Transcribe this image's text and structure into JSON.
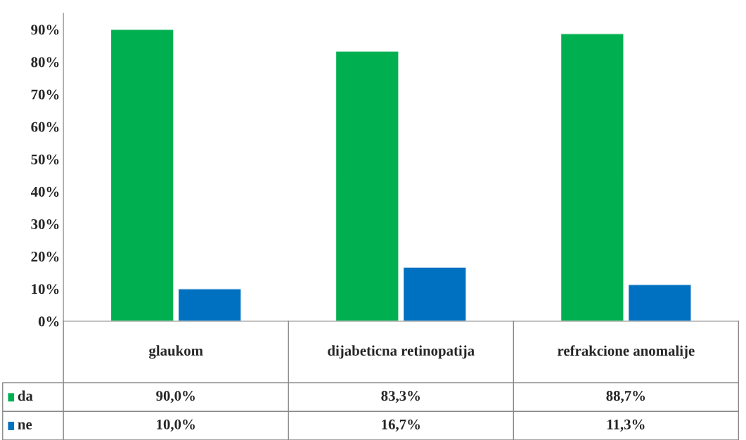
{
  "chart_data": {
    "type": "bar",
    "categories": [
      "glaukom",
      "dijabeticna retinopatija",
      "refrakcione anomalije"
    ],
    "series": [
      {
        "name": "da",
        "color": "#00b050",
        "values": [
          90.0,
          83.3,
          88.7
        ],
        "value_labels": [
          "90,0%",
          "83,3%",
          "88,7%"
        ]
      },
      {
        "name": "ne",
        "color": "#0070c0",
        "values": [
          10.0,
          16.7,
          11.3
        ],
        "value_labels": [
          "10,0%",
          "16,7%",
          "11,3%"
        ]
      }
    ],
    "ylim": [
      0,
      95
    ],
    "yticks": [
      {
        "value": 0,
        "label": "0%"
      },
      {
        "value": 10,
        "label": "10%"
      },
      {
        "value": 20,
        "label": "20%"
      },
      {
        "value": 30,
        "label": "30%"
      },
      {
        "value": 40,
        "label": "40%"
      },
      {
        "value": 50,
        "label": "50%"
      },
      {
        "value": 60,
        "label": "60%"
      },
      {
        "value": 70,
        "label": "70%"
      },
      {
        "value": 80,
        "label": "80%"
      },
      {
        "value": 90,
        "label": "90%"
      }
    ],
    "grid": false,
    "legend": "bottom"
  }
}
